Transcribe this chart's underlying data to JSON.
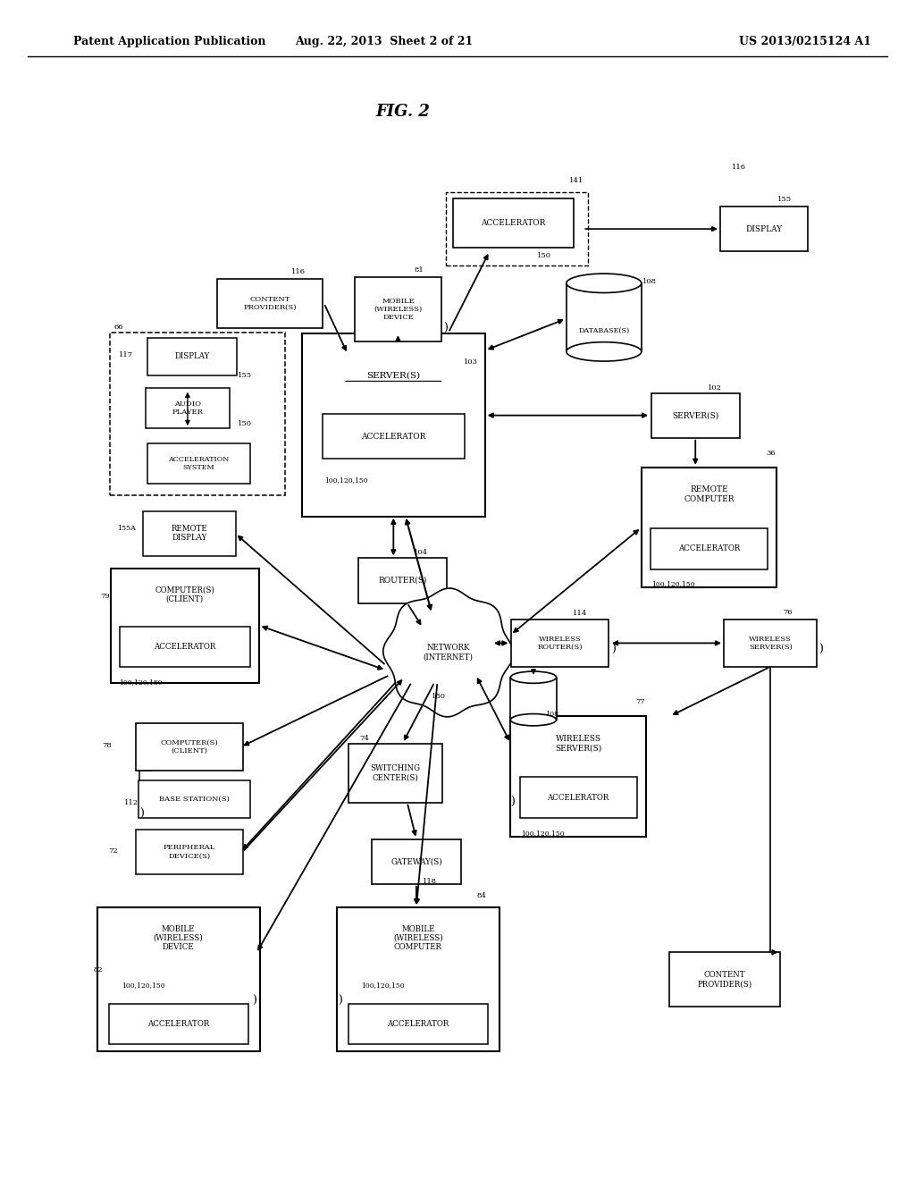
{
  "title": "FIG. 2",
  "header_left": "Patent Application Publication",
  "header_center": "Aug. 22, 2013  Sheet 2 of 21",
  "header_right": "US 2013/0215124 A1",
  "bg_color": "#ffffff",
  "line_color": "#000000",
  "text_color": "#000000"
}
